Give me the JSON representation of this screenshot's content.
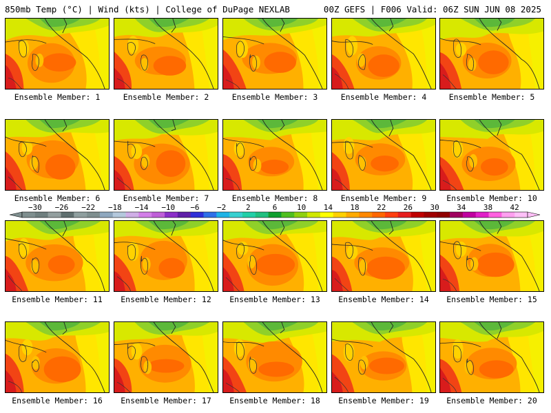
{
  "header": {
    "left": "850mb Temp (°C) | Wind (kts) | College of DuPage NEXLAB",
    "right": "00Z GEFS | F006 Valid: 06Z SUN JUN 08 2025"
  },
  "panels": [
    {
      "label": "Ensemble Member: 1"
    },
    {
      "label": "Ensemble Member: 2"
    },
    {
      "label": "Ensemble Member: 3"
    },
    {
      "label": "Ensemble Member: 4"
    },
    {
      "label": "Ensemble Member: 5"
    },
    {
      "label": "Ensemble Member: 6"
    },
    {
      "label": "Ensemble Member: 7"
    },
    {
      "label": "Ensemble Member: 8"
    },
    {
      "label": "Ensemble Member: 9"
    },
    {
      "label": "Ensemble Member: 10"
    },
    {
      "label": "Ensemble Member: 11"
    },
    {
      "label": "Ensemble Member: 12"
    },
    {
      "label": "Ensemble Member: 13"
    },
    {
      "label": "Ensemble Member: 14"
    },
    {
      "label": "Ensemble Member: 15"
    },
    {
      "label": "Ensemble Member: 16"
    },
    {
      "label": "Ensemble Member: 17"
    },
    {
      "label": "Ensemble Member: 18"
    },
    {
      "label": "Ensemble Member: 19"
    },
    {
      "label": "Ensemble Member: 20"
    }
  ],
  "colorbar": {
    "tick_labels": [
      "−30",
      "−26",
      "−22",
      "−18",
      "−14",
      "−10",
      "−6",
      "−2",
      "2",
      "6",
      "10",
      "14",
      "18",
      "22",
      "26",
      "30",
      "34",
      "38",
      "42"
    ],
    "colors": [
      "#7f8f8f",
      "#6f7f7f",
      "#939f9f",
      "#5f6f6f",
      "#8f9f9f",
      "#7f8f8f",
      "#8fa8bf",
      "#b4c8dc",
      "#cfaee6",
      "#d27ee8",
      "#bf5fd8",
      "#8b2fc8",
      "#5f1fa8",
      "#2f2fd8",
      "#2f6fe8",
      "#1fb3e6",
      "#38d0d0",
      "#22cfa8",
      "#20c080",
      "#0f9f2f",
      "#4fbf1f",
      "#8fd00f",
      "#d0e800",
      "#ffff00",
      "#ffd000",
      "#ffaa00",
      "#ff8800",
      "#ff6600",
      "#ff3f10",
      "#e61e1e",
      "#c00000",
      "#a00000",
      "#900000",
      "#a0005f",
      "#c000a0",
      "#e020c8",
      "#ff60e0",
      "#ff9ff0",
      "#ffc0f8"
    ],
    "colors_note": "",
    "temp_field_palette": [
      "#ffee00",
      "#ffd200",
      "#ffb000",
      "#ff9000",
      "#ff7000",
      "#f04a10",
      "#d81c1c",
      "#c0d60a",
      "#8fcf1f",
      "#5fb832"
    ]
  }
}
